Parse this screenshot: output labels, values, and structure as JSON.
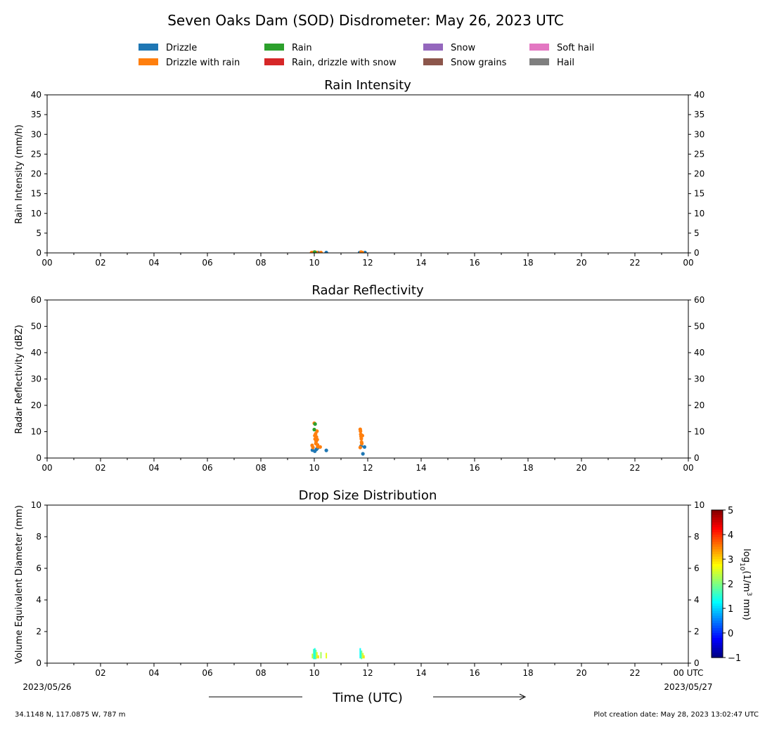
{
  "page": {
    "title": "Seven Oaks Dam (SOD) Disdrometer: May 26, 2023 UTC",
    "footer_left": "34.1148 N, 117.0875 W, 787 m",
    "footer_right": "Plot creation date: May 28, 2023 13:02:47 UTC",
    "xaxis_title": "Time (UTC)",
    "x_start_label": "00 UTC",
    "x_start_date": "2023/05/26",
    "x_end_label": "00 UTC",
    "x_end_date": "2023/05/27"
  },
  "legend": [
    {
      "label": "Drizzle",
      "color": "#1f77b4"
    },
    {
      "label": "Drizzle with rain",
      "color": "#ff7f0e"
    },
    {
      "label": "Rain",
      "color": "#2ca02c"
    },
    {
      "label": "Rain, drizzle with snow",
      "color": "#d62728"
    },
    {
      "label": "Snow",
      "color": "#9467bd"
    },
    {
      "label": "Snow grains",
      "color": "#8c564b"
    },
    {
      "label": "Soft hail",
      "color": "#e377c2"
    },
    {
      "label": "Hail",
      "color": "#7f7f7f"
    }
  ],
  "colorbar": {
    "label_prefix": "log",
    "label_sub": "10",
    "label_mid": "(1/m",
    "label_sup": "3",
    "label_suffix": " mm)",
    "range": [
      -1,
      5
    ],
    "ticks": [
      "5",
      "4",
      "3",
      "2",
      "1",
      "0",
      "−1"
    ],
    "colormap": "jet"
  },
  "chart_data": [
    {
      "type": "scatter",
      "title": "Rain Intensity",
      "xlabel": "",
      "ylabel": "Rain Intensity (mm/h)",
      "xlim": [
        0,
        24
      ],
      "ylim": [
        0,
        40
      ],
      "x_tick_labels": [
        "00",
        "02",
        "04",
        "06",
        "08",
        "10",
        "12",
        "14",
        "16",
        "18",
        "20",
        "22",
        "00"
      ],
      "y_ticks": [
        0,
        5,
        10,
        15,
        20,
        25,
        30,
        35,
        40
      ],
      "series": [
        {
          "class": "Drizzle",
          "color": "#1f77b4",
          "points": [
            [
              9.95,
              0.1
            ],
            [
              10.05,
              0.1
            ],
            [
              10.15,
              0.1
            ],
            [
              10.45,
              0.1
            ],
            [
              11.7,
              0.1
            ],
            [
              11.9,
              0.1
            ]
          ]
        },
        {
          "class": "Drizzle with rain",
          "color": "#ff7f0e",
          "points": [
            [
              9.9,
              0.1
            ],
            [
              10.0,
              0.2
            ],
            [
              10.1,
              0.1
            ],
            [
              10.25,
              0.1
            ],
            [
              11.75,
              0.2
            ],
            [
              11.8,
              0.1
            ]
          ]
        },
        {
          "class": "Rain",
          "color": "#2ca02c",
          "points": [
            [
              10.02,
              0.2
            ]
          ]
        }
      ]
    },
    {
      "type": "scatter",
      "title": "Radar Reflectivity",
      "xlabel": "",
      "ylabel": "Radar Reflectivity (dBZ)",
      "xlim": [
        0,
        24
      ],
      "ylim": [
        0,
        60
      ],
      "x_tick_labels": [
        "00",
        "02",
        "04",
        "06",
        "08",
        "10",
        "12",
        "14",
        "16",
        "18",
        "20",
        "22",
        "00"
      ],
      "y_ticks": [
        0,
        10,
        20,
        30,
        40,
        50,
        60
      ],
      "series": [
        {
          "class": "Drizzle",
          "color": "#1f77b4",
          "points": [
            [
              9.93,
              3.0
            ],
            [
              10.02,
              2.6
            ],
            [
              10.08,
              3.3
            ],
            [
              10.12,
              3.8
            ],
            [
              10.45,
              2.9
            ],
            [
              11.82,
              1.6
            ],
            [
              11.88,
              4.2
            ],
            [
              11.75,
              4.5
            ]
          ]
        },
        {
          "class": "Drizzle with rain",
          "color": "#ff7f0e",
          "points": [
            [
              9.92,
              4.8
            ],
            [
              9.95,
              4.0
            ],
            [
              10.0,
              13.2
            ],
            [
              10.02,
              8.5
            ],
            [
              10.03,
              7.2
            ],
            [
              10.05,
              9.2
            ],
            [
              10.06,
              5.5
            ],
            [
              10.07,
              6.3
            ],
            [
              10.08,
              8.0
            ],
            [
              10.1,
              10.2
            ],
            [
              10.11,
              7.0
            ],
            [
              10.12,
              5.0
            ],
            [
              10.13,
              4.3
            ],
            [
              10.22,
              4.2
            ],
            [
              11.72,
              10.9
            ],
            [
              11.73,
              10.2
            ],
            [
              11.74,
              9.0
            ],
            [
              11.75,
              8.2
            ],
            [
              11.76,
              7.3
            ],
            [
              11.77,
              6.0
            ],
            [
              11.78,
              5.5
            ],
            [
              11.72,
              4.0
            ],
            [
              11.8,
              8.5
            ]
          ]
        },
        {
          "class": "Rain",
          "color": "#2ca02c",
          "points": [
            [
              10.0,
              10.8
            ],
            [
              10.03,
              12.9
            ]
          ]
        }
      ]
    },
    {
      "type": "heatmap",
      "title": "Drop Size Distribution",
      "xlabel": "Time (UTC)",
      "ylabel": "Volume Equivalent Diameter (mm)",
      "xlim": [
        0,
        24
      ],
      "ylim": [
        0,
        10
      ],
      "x_tick_labels": [
        "00 UTC",
        "02",
        "04",
        "06",
        "08",
        "10",
        "12",
        "14",
        "16",
        "18",
        "20",
        "22",
        "00 UTC"
      ],
      "y_ticks": [
        0,
        2,
        4,
        6,
        8,
        10
      ],
      "cells": [
        [
          9.93,
          0.3,
          0.6,
          2.4
        ],
        [
          9.98,
          0.25,
          0.9,
          1.6
        ],
        [
          10.02,
          0.25,
          0.95,
          1.4
        ],
        [
          10.06,
          0.25,
          0.85,
          1.8
        ],
        [
          10.1,
          0.3,
          0.7,
          2.6
        ],
        [
          10.15,
          0.3,
          0.5,
          3.0
        ],
        [
          10.25,
          0.3,
          0.7,
          2.2
        ],
        [
          10.45,
          0.3,
          0.65,
          2.6
        ],
        [
          11.72,
          0.3,
          0.95,
          1.3
        ],
        [
          11.77,
          0.25,
          0.8,
          1.9
        ],
        [
          11.82,
          0.3,
          0.65,
          2.5
        ],
        [
          11.86,
          0.3,
          0.5,
          2.9
        ]
      ]
    }
  ]
}
